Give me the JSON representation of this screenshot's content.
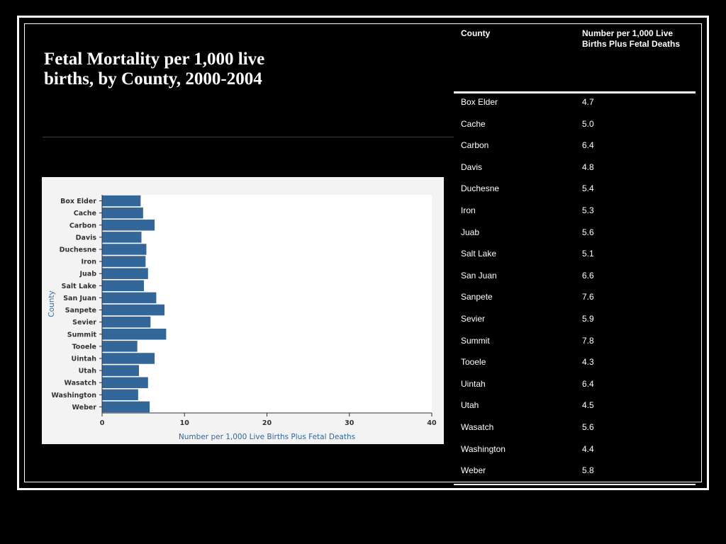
{
  "slide": {
    "title": "Fetal Mortality per 1,000 live births, by County, 2000-2004"
  },
  "colors": {
    "background": "#000000",
    "bar": "#336699",
    "accent_rule": "#8b1a1a",
    "axis_label": "#336699"
  },
  "table": {
    "headers": [
      "County",
      "Number per 1,000 Live Births Plus Fetal Deaths"
    ],
    "rows": [
      [
        "Box Elder",
        "4.7"
      ],
      [
        "Cache",
        "5.0"
      ],
      [
        "Carbon",
        "6.4"
      ],
      [
        "Davis",
        "4.8"
      ],
      [
        "Duchesne",
        "5.4"
      ],
      [
        "Iron",
        "5.3"
      ],
      [
        "Juab",
        "5.6"
      ],
      [
        "Salt Lake",
        "5.1"
      ],
      [
        "San Juan",
        "6.6"
      ],
      [
        "Sanpete",
        "7.6"
      ],
      [
        "Sevier",
        "5.9"
      ],
      [
        "Summit",
        "7.8"
      ],
      [
        "Tooele",
        "4.3"
      ],
      [
        "Uintah",
        "6.4"
      ],
      [
        "Utah",
        "4.5"
      ],
      [
        "Wasatch",
        "5.6"
      ],
      [
        "Washington",
        "4.4"
      ],
      [
        "Weber",
        "5.8"
      ]
    ]
  },
  "chart_data": {
    "type": "bar",
    "orientation": "horizontal",
    "categories": [
      "Box Elder",
      "Cache",
      "Carbon",
      "Davis",
      "Duchesne",
      "Iron",
      "Juab",
      "Salt Lake",
      "San Juan",
      "Sanpete",
      "Sevier",
      "Summit",
      "Tooele",
      "Uintah",
      "Utah",
      "Wasatch",
      "Washington",
      "Weber"
    ],
    "values": [
      4.7,
      5.0,
      6.4,
      4.8,
      5.4,
      5.3,
      5.6,
      5.1,
      6.6,
      7.6,
      5.9,
      7.8,
      4.3,
      6.4,
      4.5,
      5.6,
      4.4,
      5.8
    ],
    "xlabel": "Number per 1,000 Live Births Plus Fetal Deaths",
    "ylabel": "County",
    "xlim": [
      0,
      40
    ],
    "xticks": [
      0,
      10,
      20,
      30,
      40
    ],
    "grid": false
  }
}
